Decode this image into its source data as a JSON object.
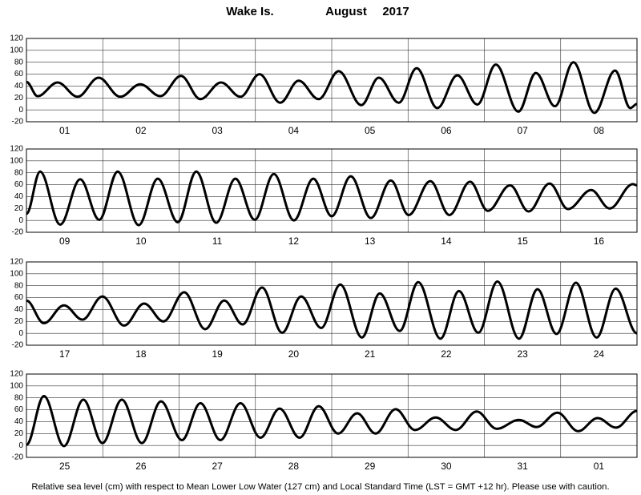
{
  "title": [
    "Wake Is.",
    "August",
    "2017"
  ],
  "caption": "Relative sea level (cm) with respect to Mean Lower Low Water (127 cm) and Local Standard Time (LST = GMT +12 hr). Please use with caution.",
  "chart_data": [
    {
      "type": "line",
      "color": "#000000",
      "grid": true,
      "xlim": [
        0,
        192
      ],
      "ylim": [
        -20,
        120
      ],
      "yticks": [
        -20,
        0,
        20,
        40,
        60,
        80,
        100,
        120
      ],
      "categories": [
        "01",
        "02",
        "03",
        "04",
        "05",
        "06",
        "07",
        "08"
      ],
      "x": [
        0,
        3.5,
        9.8,
        16.1,
        22.7,
        29.5,
        35.8,
        42.1,
        48.6,
        54.7,
        61.2,
        67.3,
        73.3,
        79.8,
        85.6,
        91.9,
        98.2,
        105.3,
        110.8,
        117.1,
        122.7,
        129.2,
        135.5,
        141.8,
        147.6,
        154.7,
        160.2,
        166.2,
        172.0,
        178.6,
        185.1,
        189.9,
        192
      ],
      "values": [
        47,
        23,
        46,
        22,
        54,
        22,
        43,
        23,
        57,
        18,
        46,
        22,
        60,
        12,
        49,
        18,
        65,
        8,
        54,
        12,
        70,
        3,
        58,
        9,
        76,
        -3,
        62,
        6,
        80,
        -5,
        66,
        3,
        10
      ]
    },
    {
      "type": "line",
      "color": "#000000",
      "grid": true,
      "xlim": [
        0,
        192
      ],
      "ylim": [
        -20,
        120
      ],
      "yticks": [
        -20,
        0,
        20,
        40,
        60,
        80,
        100,
        120
      ],
      "categories": [
        "09",
        "10",
        "11",
        "12",
        "13",
        "14",
        "15",
        "16"
      ],
      "x": [
        0,
        4.3,
        10.6,
        16.9,
        22.9,
        28.7,
        35.3,
        41.3,
        47.6,
        53.4,
        59.7,
        65.7,
        71.8,
        77.8,
        84.1,
        90.2,
        96.0,
        102.0,
        108.3,
        114.6,
        120.2,
        127.0,
        133.0,
        139.5,
        145.1,
        152.1,
        157.9,
        164.5,
        170.3,
        177.6,
        183.4,
        190.7,
        192
      ],
      "values": [
        11,
        82,
        -7,
        69,
        1,
        82,
        -8,
        70,
        -3,
        82,
        -4,
        70,
        1,
        78,
        0,
        70,
        7,
        74,
        4,
        67,
        9,
        66,
        9,
        65,
        16,
        59,
        15,
        62,
        19,
        51,
        20,
        61,
        59
      ]
    },
    {
      "type": "line",
      "color": "#000000",
      "grid": true,
      "xlim": [
        0,
        192
      ],
      "ylim": [
        -20,
        120
      ],
      "yticks": [
        -20,
        0,
        20,
        40,
        60,
        80,
        100,
        120
      ],
      "categories": [
        "17",
        "18",
        "19",
        "20",
        "21",
        "22",
        "23",
        "24"
      ],
      "x": [
        0,
        5.5,
        11.8,
        17.6,
        23.9,
        30.7,
        37.0,
        43.1,
        49.6,
        56.2,
        62.2,
        68.0,
        74.1,
        80.4,
        86.4,
        92.7,
        98.7,
        105.5,
        111.1,
        117.4,
        123.2,
        130.2,
        136.0,
        142.1,
        148.1,
        154.9,
        160.7,
        166.7,
        172.8,
        179.3,
        185.3,
        192
      ],
      "values": [
        55,
        17,
        47,
        23,
        62,
        13,
        50,
        20,
        69,
        7,
        55,
        15,
        77,
        1,
        62,
        9,
        82,
        -7,
        67,
        4,
        86,
        -9,
        71,
        1,
        87,
        -9,
        74,
        -1,
        85,
        -7,
        75,
        0
      ]
    },
    {
      "type": "line",
      "color": "#000000",
      "grid": true,
      "xlim": [
        0,
        192
      ],
      "ylim": [
        -20,
        120
      ],
      "yticks": [
        -20,
        0,
        20,
        40,
        60,
        80,
        100,
        120
      ],
      "categories": [
        "25",
        "26",
        "27",
        "28",
        "29",
        "30",
        "31",
        "01"
      ],
      "x": [
        0,
        5.5,
        11.8,
        17.9,
        23.9,
        30.0,
        36.3,
        42.3,
        48.9,
        54.7,
        61.0,
        67.3,
        73.6,
        79.6,
        85.9,
        91.9,
        98.0,
        104.0,
        109.8,
        116.1,
        122.2,
        128.7,
        135.0,
        141.6,
        147.9,
        154.9,
        160.4,
        167.0,
        173.5,
        179.6,
        185.4,
        192
      ],
      "values": [
        1,
        83,
        -1,
        77,
        4,
        77,
        4,
        74,
        9,
        71,
        9,
        71,
        13,
        62,
        13,
        66,
        20,
        54,
        20,
        61,
        26,
        47,
        26,
        57,
        28,
        43,
        31,
        55,
        24,
        46,
        30,
        58
      ]
    }
  ]
}
